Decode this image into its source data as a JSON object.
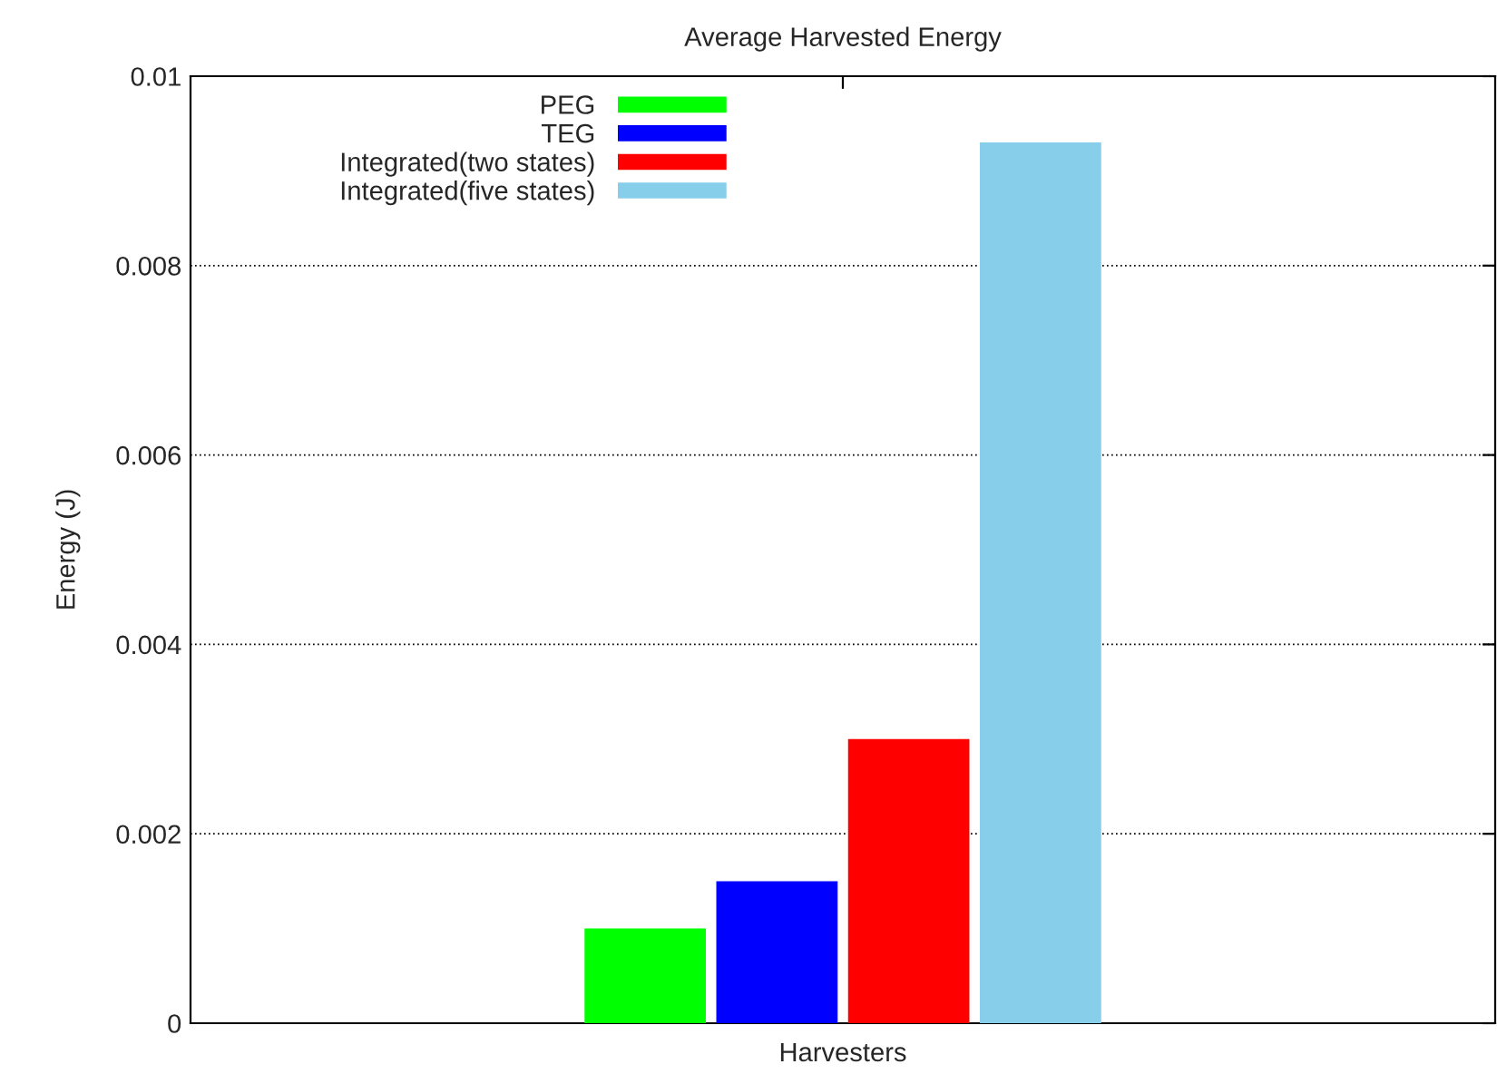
{
  "chart_data": {
    "type": "bar",
    "title": "Average Harvested Energy",
    "xlabel": "Harvesters",
    "ylabel": "Energy (J)",
    "categories": [
      null
    ],
    "series": [
      {
        "name": "PEG",
        "color": "#00ff00",
        "values": [
          0.001
        ]
      },
      {
        "name": "TEG",
        "color": "#0000ff",
        "values": [
          0.0015
        ]
      },
      {
        "name": "Integrated(two states)",
        "color": "#ff0000",
        "values": [
          0.003
        ]
      },
      {
        "name": "Integrated(five states)",
        "color": "#87ceeb",
        "values": [
          0.0093
        ]
      }
    ],
    "ylim": [
      0,
      0.01
    ],
    "yticks": [
      0,
      0.002,
      0.004,
      0.006,
      0.008,
      0.01
    ],
    "grid": "y",
    "legend": "top left"
  }
}
